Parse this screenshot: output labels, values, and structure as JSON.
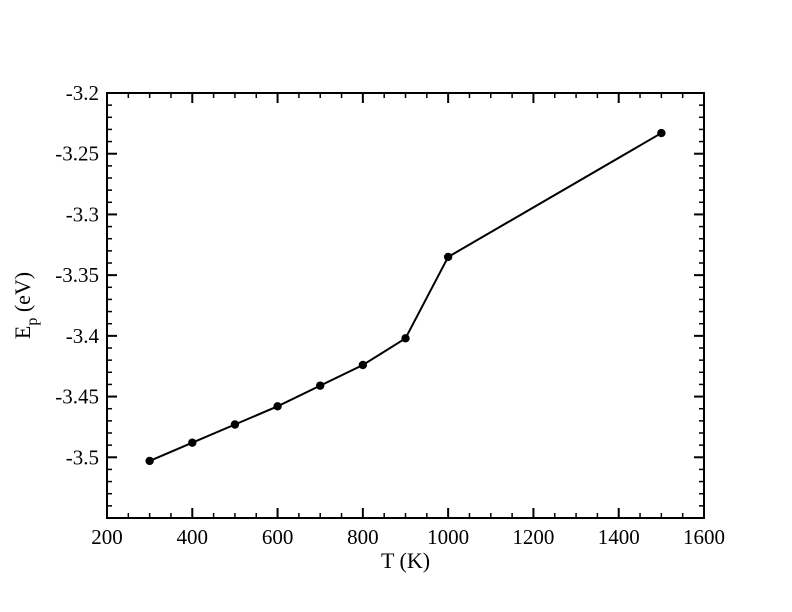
{
  "chart_data": {
    "type": "line",
    "title": "",
    "xlabel": "T (K)",
    "ylabel": {
      "main": "E",
      "subscript": "p",
      "suffix": " (eV)"
    },
    "xlim": [
      200,
      1600
    ],
    "ylim": [
      -3.55,
      -3.2
    ],
    "x_major_ticks": [
      200,
      400,
      600,
      800,
      1000,
      1200,
      1400,
      1600
    ],
    "x_tick_labels": [
      "200",
      "400",
      "600",
      "800",
      "1000",
      "1200",
      "1400",
      "1600"
    ],
    "y_major_ticks": [
      -3.5,
      -3.45,
      -3.4,
      -3.35,
      -3.3,
      -3.25,
      -3.2
    ],
    "y_tick_labels": [
      "-3.5",
      "-3.45",
      "-3.4",
      "-3.35",
      "-3.3",
      "-3.25",
      "-3.2"
    ],
    "x_minor_step": 50,
    "y_minor_step": 0.01,
    "grid": false,
    "legend": "none",
    "series": [
      {
        "color": "#000000",
        "marker": "circle",
        "x": [
          300,
          400,
          500,
          600,
          700,
          800,
          900,
          1000,
          1500
        ],
        "y": [
          -3.503,
          -3.488,
          -3.473,
          -3.458,
          -3.441,
          -3.424,
          -3.402,
          -3.335,
          -3.233
        ]
      }
    ]
  }
}
